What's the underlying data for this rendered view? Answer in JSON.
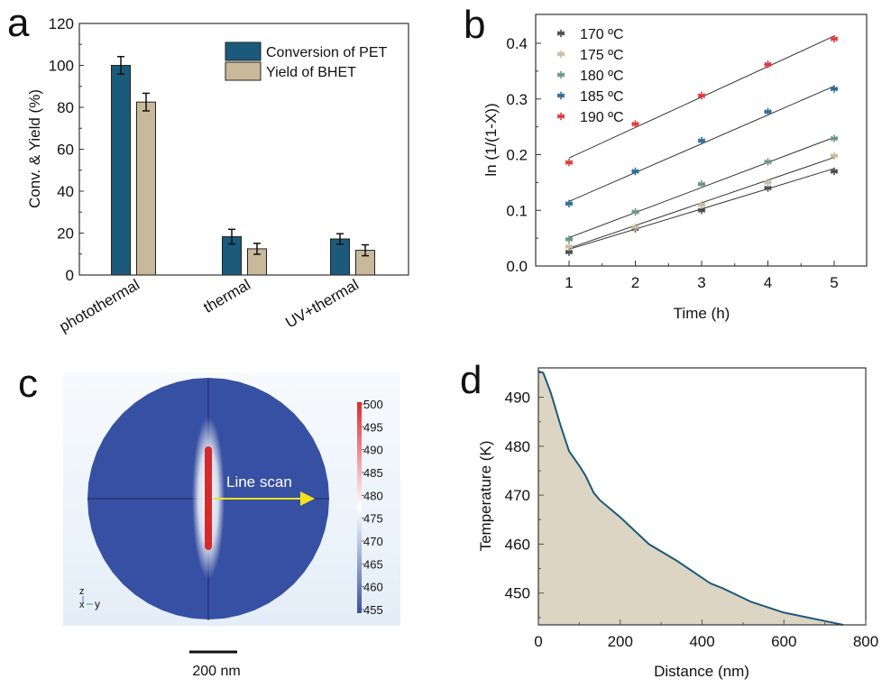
{
  "panel_labels": [
    "a",
    "b",
    "c",
    "d"
  ],
  "colors": {
    "conversion": "#1b5a7a",
    "yield": "#c9b99b",
    "series_170": "#4a4a4a",
    "series_175": "#cbbd9e",
    "series_180": "#6a9583",
    "series_185": "#2a6b95",
    "series_190": "#e0393b",
    "area_fill": "#ddd5c3",
    "curve": "#1b5a7a",
    "sim_blue": "#3650a3",
    "sim_red": "#d42a2e",
    "arrow": "#f3e21a",
    "sim_bg": "#eaf2fa"
  },
  "chart_data": [
    {
      "id": "a",
      "type": "bar",
      "title": "",
      "xlabel": "",
      "ylabel": "Conv. & Yield (%)",
      "ylim": [
        0,
        120
      ],
      "yticks": [
        0,
        20,
        40,
        60,
        80,
        100,
        120
      ],
      "categories": [
        "photothermal",
        "thermal",
        "UV+thermal"
      ],
      "series": [
        {
          "name": "Conversion of PET",
          "values": [
            100,
            18.3,
            17.2
          ],
          "errors": [
            4.2,
            3.5,
            2.5
          ]
        },
        {
          "name": "Yield of BHET",
          "values": [
            82.5,
            12.5,
            11.8
          ],
          "errors": [
            4.2,
            2.6,
            2.6
          ]
        }
      ],
      "legend": "top-right",
      "grid": false
    },
    {
      "id": "b",
      "type": "scatter",
      "title": "",
      "xlabel": "Time (h)",
      "ylabel": "ln (1/(1-X))",
      "xlim": [
        0.5,
        5.5
      ],
      "ylim": [
        0.0,
        0.45
      ],
      "xticks": [
        1,
        2,
        3,
        4,
        5
      ],
      "yticks": [
        0.0,
        0.1,
        0.2,
        0.3,
        0.4
      ],
      "ytick_labels": [
        "0.0",
        "0.1",
        "0.2",
        "0.3",
        "0.4"
      ],
      "x": [
        1,
        2,
        3,
        4,
        5
      ],
      "series": [
        {
          "name": "170 ºC",
          "values": [
            0.025,
            0.067,
            0.1,
            0.14,
            0.17
          ],
          "fit": [
            0.03,
            0.066,
            0.102,
            0.138,
            0.175
          ]
        },
        {
          "name": "175 ºC",
          "values": [
            0.035,
            0.07,
            0.11,
            0.15,
            0.198
          ],
          "fit": [
            0.032,
            0.072,
            0.113,
            0.154,
            0.195
          ]
        },
        {
          "name": "180 ºC",
          "values": [
            0.048,
            0.097,
            0.147,
            0.187,
            0.229
          ],
          "fit": [
            0.051,
            0.096,
            0.141,
            0.186,
            0.231
          ]
        },
        {
          "name": "185 ºC",
          "values": [
            0.112,
            0.17,
            0.225,
            0.277,
            0.318
          ],
          "fit": [
            0.116,
            0.168,
            0.22,
            0.272,
            0.323
          ]
        },
        {
          "name": "190 ºC",
          "values": [
            0.186,
            0.255,
            0.306,
            0.362,
            0.408
          ],
          "fit": [
            0.194,
            0.249,
            0.304,
            0.358,
            0.413
          ]
        }
      ],
      "legend": "top-left",
      "grid": false
    },
    {
      "id": "c",
      "type": "heatmap",
      "title": "",
      "annotation": "Line scan",
      "colorbar_ticks": [
        500,
        495,
        490,
        485,
        480,
        475,
        470,
        465,
        460,
        455
      ],
      "colorbar_range": [
        453,
        500
      ],
      "axes_triad": {
        "z": "z",
        "x": "x",
        "y": "y"
      },
      "scalebar_label": "200 nm"
    },
    {
      "id": "d",
      "type": "area",
      "title": "",
      "xlabel": "Distance (nm)",
      "ylabel": "Temperature (K)",
      "xlim": [
        0,
        800
      ],
      "ylim": [
        443.5,
        496
      ],
      "xticks": [
        0,
        200,
        400,
        600,
        800
      ],
      "yticks": [
        450,
        460,
        470,
        480,
        490
      ],
      "x": [
        0,
        12,
        30,
        55,
        75,
        100,
        115,
        135,
        150,
        200,
        270,
        340,
        420,
        450,
        520,
        600,
        700,
        745
      ],
      "y": [
        495.3,
        495.0,
        491.0,
        484.0,
        479.0,
        476.0,
        474.0,
        470.5,
        469.0,
        465.5,
        460.0,
        456.5,
        452.0,
        451.0,
        448.2,
        446.0,
        444.3,
        443.5
      ],
      "grid": false
    }
  ]
}
